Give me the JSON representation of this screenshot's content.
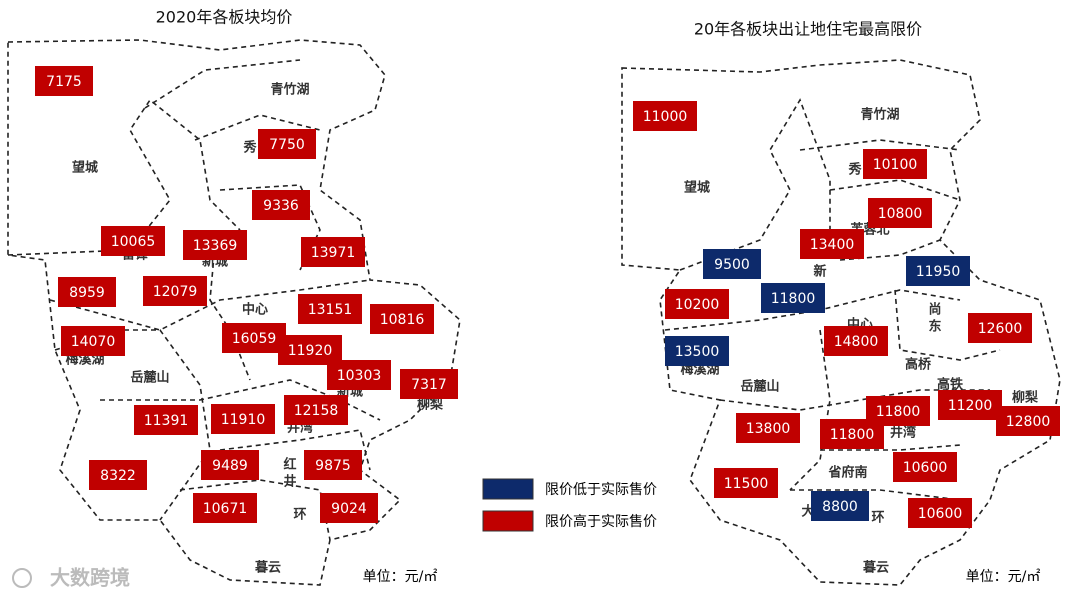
{
  "left_map": {
    "title": "2020年各板块均价",
    "unit": "单位：元/㎡",
    "regions": [
      "青竹湖",
      "望城",
      "秀",
      "雷锋",
      "新城",
      "中心",
      "梅溪湖",
      "岳麓山",
      "新城",
      "柳梨",
      "井湾",
      "红",
      "井",
      "环",
      "暮云"
    ],
    "prices": [
      {
        "value": 7175,
        "color": "#c00000"
      },
      {
        "value": 7750,
        "color": "#c00000"
      },
      {
        "value": 9336,
        "color": "#c00000"
      },
      {
        "value": 10065,
        "color": "#c00000"
      },
      {
        "value": 13369,
        "color": "#c00000"
      },
      {
        "value": 13971,
        "color": "#c00000"
      },
      {
        "value": 8959,
        "color": "#c00000"
      },
      {
        "value": 12079,
        "color": "#c00000"
      },
      {
        "value": 13151,
        "color": "#c00000"
      },
      {
        "value": 10816,
        "color": "#c00000"
      },
      {
        "value": 14070,
        "color": "#c00000"
      },
      {
        "value": 16059,
        "color": "#c00000"
      },
      {
        "value": 11920,
        "color": "#c00000"
      },
      {
        "value": 10303,
        "color": "#c00000"
      },
      {
        "value": 7317,
        "color": "#c00000"
      },
      {
        "value": 11391,
        "color": "#c00000"
      },
      {
        "value": 11910,
        "color": "#c00000"
      },
      {
        "value": 12158,
        "color": "#c00000"
      },
      {
        "value": 8322,
        "color": "#c00000"
      },
      {
        "value": 9489,
        "color": "#c00000"
      },
      {
        "value": 9875,
        "color": "#c00000"
      },
      {
        "value": 10671,
        "color": "#c00000"
      },
      {
        "value": 9024,
        "color": "#c00000"
      }
    ]
  },
  "right_map": {
    "title": "20年各板块出让地住宅最高限价",
    "unit": "单位：元/㎡",
    "regions": [
      "青竹湖",
      "望城",
      "秀",
      "芙蓉北",
      "新",
      "中心",
      "尚",
      "东",
      "高桥",
      "高铁",
      "柳梨",
      "梅溪湖",
      "岳麓山",
      "井湾",
      "省府南",
      "大",
      "环",
      "暮云"
    ],
    "prices": [
      {
        "value": 11000,
        "color": "#c00000"
      },
      {
        "value": 10100,
        "color": "#c00000"
      },
      {
        "value": 10800,
        "color": "#c00000"
      },
      {
        "value": 9500,
        "color": "#0d2a6b"
      },
      {
        "value": 13400,
        "color": "#c00000"
      },
      {
        "value": 11950,
        "color": "#0d2a6b"
      },
      {
        "value": 10200,
        "color": "#c00000"
      },
      {
        "value": 11800,
        "color": "#0d2a6b"
      },
      {
        "value": 12600,
        "color": "#c00000"
      },
      {
        "value": 14800,
        "color": "#c00000"
      },
      {
        "value": 13500,
        "color": "#0d2a6b"
      },
      {
        "value": 11800,
        "color": "#c00000"
      },
      {
        "value": 11200,
        "color": "#c00000"
      },
      {
        "value": 12800,
        "color": "#c00000"
      },
      {
        "value": 13800,
        "color": "#c00000"
      },
      {
        "value": 11800,
        "color": "#c00000"
      },
      {
        "value": 10600,
        "color": "#c00000"
      },
      {
        "value": 11500,
        "color": "#c00000"
      },
      {
        "value": 8800,
        "color": "#0d2a6b"
      },
      {
        "value": 10600,
        "color": "#c00000"
      }
    ]
  },
  "legend": [
    {
      "label": "限价低于实际售价",
      "color": "#0d2a6b"
    },
    {
      "label": "限价高于实际售价",
      "color": "#c00000"
    }
  ],
  "watermark": "大数跨境"
}
